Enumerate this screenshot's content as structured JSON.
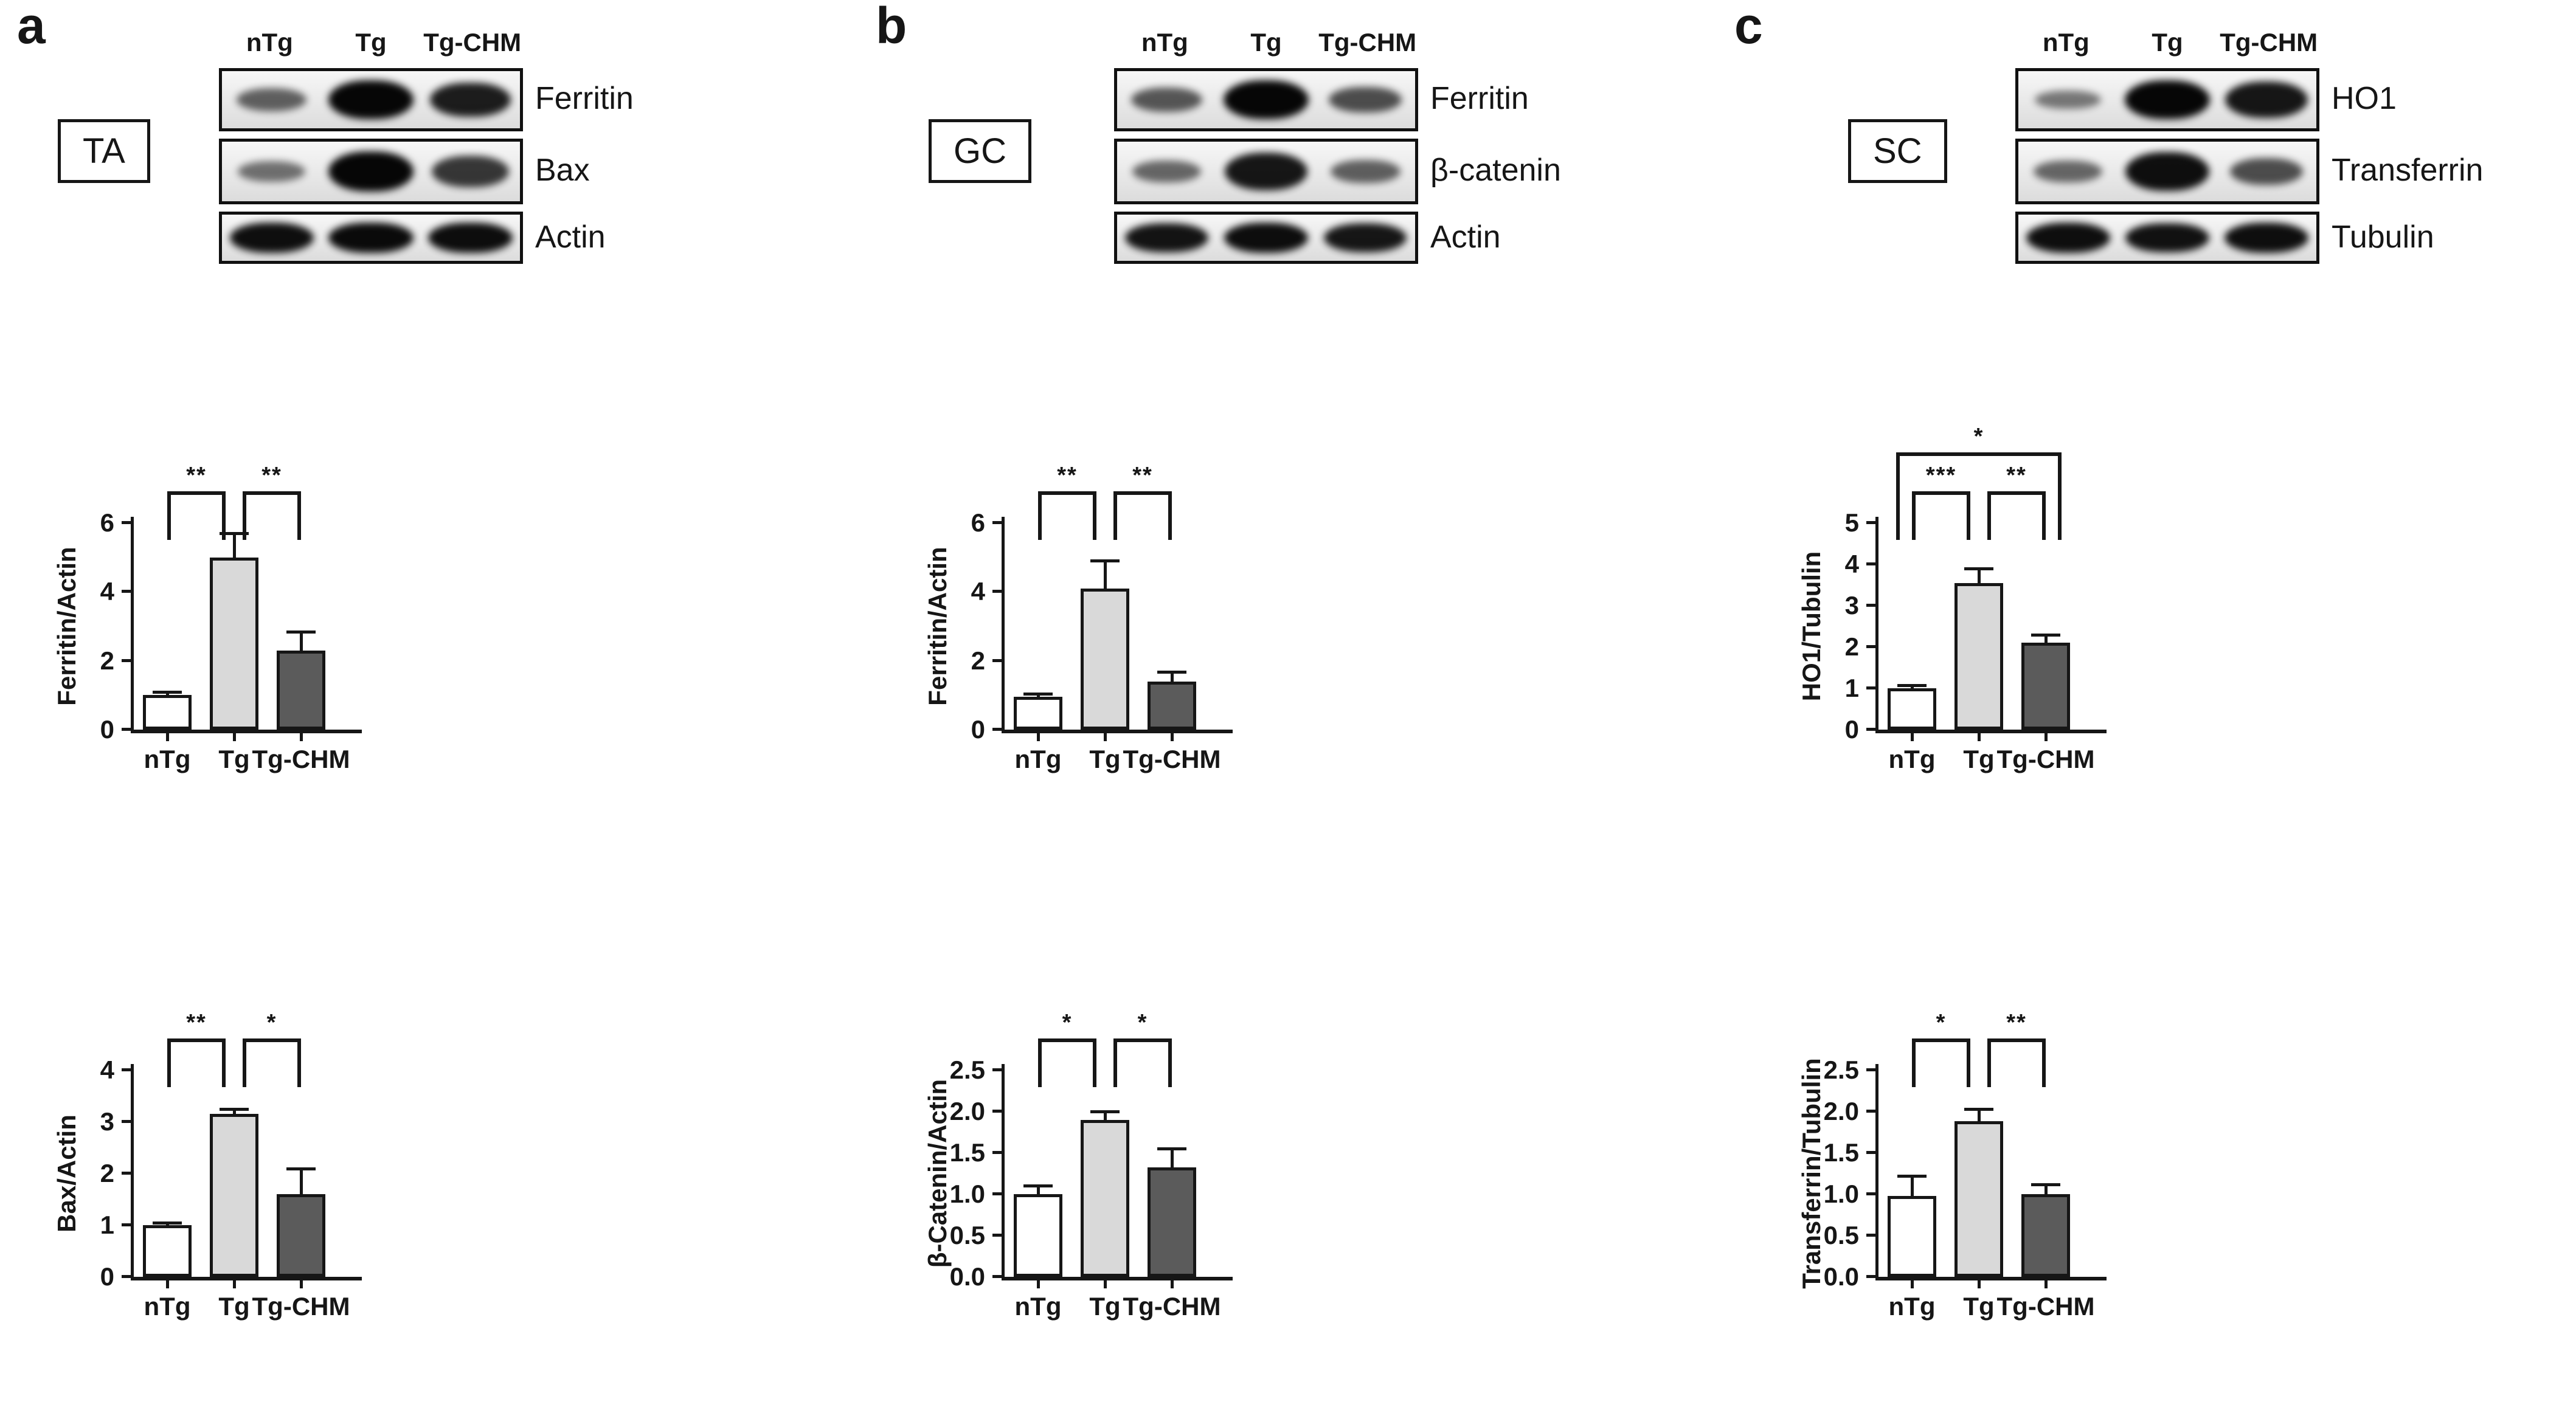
{
  "colors": {
    "ink": "#161616",
    "bar_fills": [
      "#ffffff",
      "#d9d9d9",
      "#5b5b5b"
    ],
    "blot_background": "#e9e9e9"
  },
  "figure": {
    "panels": [
      {
        "letter": "a",
        "tissue_label": "TA",
        "lane_labels": [
          "nTg",
          "Tg",
          "Tg-CHM"
        ],
        "blots": [
          {
            "protein": "Ferritin",
            "band_intensities": [
              0.45,
              1.0,
              0.85
            ]
          },
          {
            "protein": "Bax",
            "band_intensities": [
              0.35,
              1.0,
              0.7
            ]
          },
          {
            "protein": "Actin",
            "band_intensities": [
              0.95,
              0.97,
              0.96
            ]
          }
        ]
      },
      {
        "letter": "b",
        "tissue_label": "GC",
        "lane_labels": [
          "nTg",
          "Tg",
          "Tg-CHM"
        ],
        "blots": [
          {
            "protein": "Ferritin",
            "band_intensities": [
              0.5,
              1.0,
              0.55
            ]
          },
          {
            "protein": "β-catenin",
            "band_intensities": [
              0.4,
              0.9,
              0.45
            ]
          },
          {
            "protein": "Actin",
            "band_intensities": [
              0.92,
              0.96,
              0.9
            ]
          }
        ]
      },
      {
        "letter": "c",
        "tissue_label": "SC",
        "lane_labels": [
          "nTg",
          "Tg",
          "Tg-CHM"
        ],
        "blots": [
          {
            "protein": "HO1",
            "band_intensities": [
              0.3,
              1.0,
              0.9
            ]
          },
          {
            "protein": "Transferrin",
            "band_intensities": [
              0.4,
              0.95,
              0.55
            ]
          },
          {
            "protein": "Tubulin",
            "band_intensities": [
              0.95,
              0.93,
              0.94
            ]
          }
        ]
      }
    ]
  },
  "chart_data": [
    {
      "panel": "a",
      "type": "bar",
      "ylabel": "Ferritin/Actin",
      "categories": [
        "nTg",
        "Tg",
        "Tg-CHM"
      ],
      "values": [
        1.0,
        5.0,
        2.3
      ],
      "errors": [
        0.1,
        0.7,
        0.55
      ],
      "ylim": [
        0,
        6
      ],
      "yticks": [
        0,
        2,
        4,
        6
      ],
      "ytick_labels": [
        "0",
        "2",
        "4",
        "6"
      ],
      "significance": [
        {
          "pair": [
            0,
            1
          ],
          "label": "**",
          "row": 0
        },
        {
          "pair": [
            1,
            2
          ],
          "label": "**",
          "row": 0
        }
      ]
    },
    {
      "panel": "a",
      "type": "bar",
      "ylabel": "Bax/Actin",
      "categories": [
        "nTg",
        "Tg",
        "Tg-CHM"
      ],
      "values": [
        1.0,
        3.15,
        1.6
      ],
      "errors": [
        0.05,
        0.1,
        0.5
      ],
      "ylim": [
        0,
        4
      ],
      "yticks": [
        0,
        1,
        2,
        3,
        4
      ],
      "ytick_labels": [
        "0",
        "1",
        "2",
        "3",
        "4"
      ],
      "significance": [
        {
          "pair": [
            0,
            1
          ],
          "label": "**",
          "row": 0
        },
        {
          "pair": [
            1,
            2
          ],
          "label": "*",
          "row": 0
        }
      ]
    },
    {
      "panel": "b",
      "type": "bar",
      "ylabel": "Ferritin/Actin",
      "categories": [
        "nTg",
        "Tg",
        "Tg-CHM"
      ],
      "values": [
        0.95,
        4.1,
        1.4
      ],
      "errors": [
        0.1,
        0.8,
        0.28
      ],
      "ylim": [
        0,
        6
      ],
      "yticks": [
        0,
        2,
        4,
        6
      ],
      "ytick_labels": [
        "0",
        "2",
        "4",
        "6"
      ],
      "significance": [
        {
          "pair": [
            0,
            1
          ],
          "label": "**",
          "row": 0
        },
        {
          "pair": [
            1,
            2
          ],
          "label": "**",
          "row": 0
        }
      ]
    },
    {
      "panel": "b",
      "type": "bar",
      "ylabel": "β-Catenin/Actin",
      "categories": [
        "nTg",
        "Tg",
        "Tg-CHM"
      ],
      "values": [
        1.0,
        1.9,
        1.32
      ],
      "errors": [
        0.1,
        0.1,
        0.23
      ],
      "ylim": [
        0,
        2.5
      ],
      "yticks": [
        0,
        0.5,
        1.0,
        1.5,
        2.0,
        2.5
      ],
      "ytick_labels": [
        "0.0",
        "0.5",
        "1.0",
        "1.5",
        "2.0",
        "2.5"
      ],
      "significance": [
        {
          "pair": [
            0,
            1
          ],
          "label": "*",
          "row": 0
        },
        {
          "pair": [
            1,
            2
          ],
          "label": "*",
          "row": 0
        }
      ]
    },
    {
      "panel": "c",
      "type": "bar",
      "ylabel": "HO1/Tubulin",
      "categories": [
        "nTg",
        "Tg",
        "Tg-CHM"
      ],
      "values": [
        1.0,
        3.55,
        2.1
      ],
      "errors": [
        0.08,
        0.35,
        0.2
      ],
      "ylim": [
        0,
        5
      ],
      "yticks": [
        0,
        1,
        2,
        3,
        4,
        5
      ],
      "ytick_labels": [
        "0",
        "1",
        "2",
        "3",
        "4",
        "5"
      ],
      "significance": [
        {
          "pair": [
            0,
            1
          ],
          "label": "***",
          "row": 0
        },
        {
          "pair": [
            1,
            2
          ],
          "label": "**",
          "row": 0
        },
        {
          "pair": [
            0,
            2
          ],
          "label": "*",
          "row": 1
        }
      ]
    },
    {
      "panel": "c",
      "type": "bar",
      "ylabel": "Transferrin/Tubulin",
      "categories": [
        "nTg",
        "Tg",
        "Tg-CHM"
      ],
      "values": [
        0.98,
        1.88,
        1.0
      ],
      "errors": [
        0.24,
        0.15,
        0.12
      ],
      "ylim": [
        0,
        2.5
      ],
      "yticks": [
        0,
        0.5,
        1.0,
        1.5,
        2.0,
        2.5
      ],
      "ytick_labels": [
        "0.0",
        "0.5",
        "1.0",
        "1.5",
        "2.0",
        "2.5"
      ],
      "significance": [
        {
          "pair": [
            0,
            1
          ],
          "label": "*",
          "row": 0
        },
        {
          "pair": [
            1,
            2
          ],
          "label": "**",
          "row": 0
        }
      ]
    }
  ]
}
